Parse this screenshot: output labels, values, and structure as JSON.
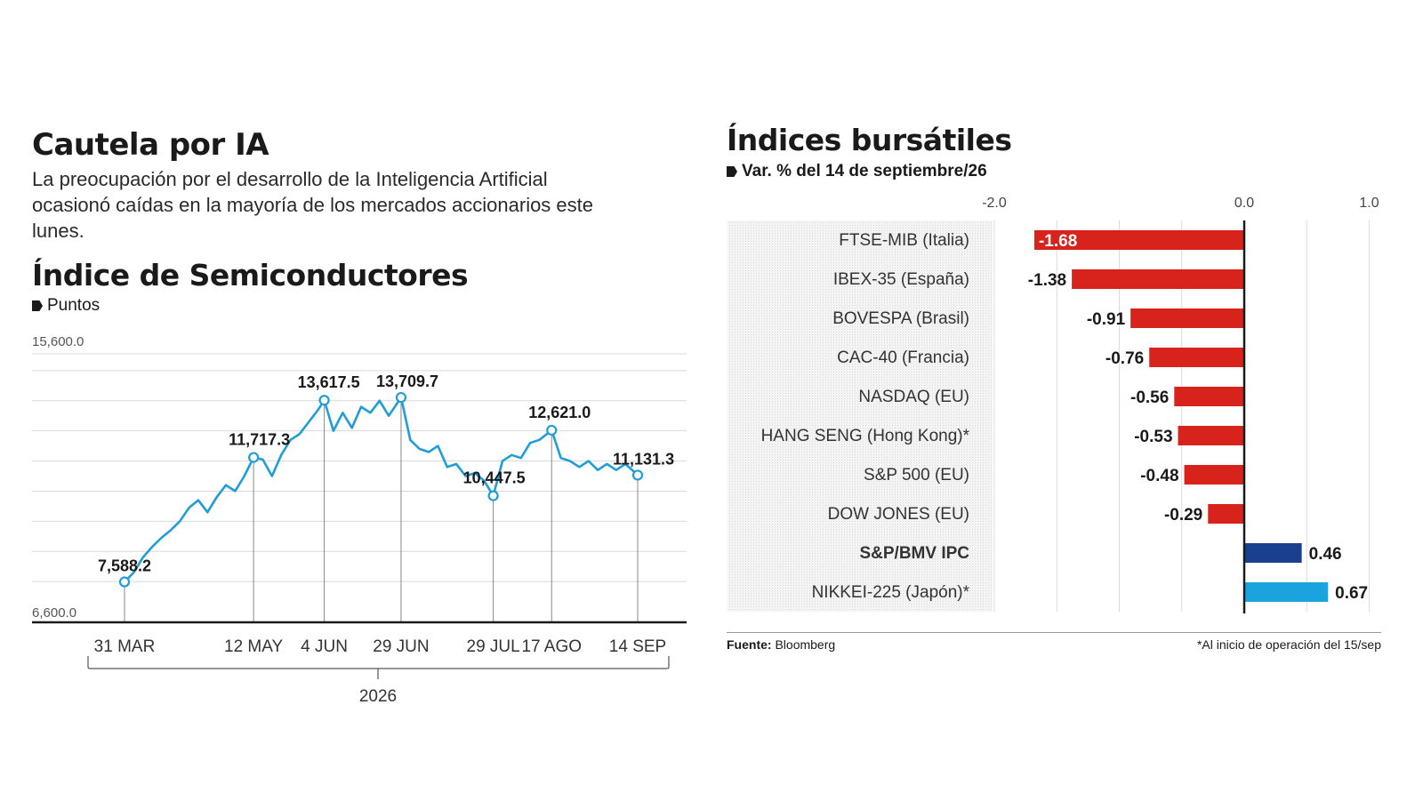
{
  "left": {
    "title": "Cautela por IA",
    "lead": "La preocupación por el desarrollo de la Inteligencia Artificial ocasionó caídas en la mayoría de los mercados accionarios este lunes.",
    "chart_title": "Índice de Semiconductores",
    "chart_subtitle": "Puntos",
    "year_label": "2026"
  },
  "right": {
    "title": "Índices bursátiles",
    "subtitle": "Var. % del 14 de septiembre/26",
    "source_label": "Fuente:",
    "source_value": "Bloomberg",
    "note": "*Al inicio de operación del 15/sep"
  },
  "colors": {
    "line": "#1f9ed6",
    "negative": "#d8231c",
    "mexico": "#1b3f8f",
    "nikkei": "#1aa3df"
  },
  "chart_data": [
    {
      "type": "line",
      "title": "Índice de Semiconductores",
      "ylabel": "Puntos",
      "ylim": [
        6600.0,
        15600.0
      ],
      "y_tick_labels": [
        "6,600.0",
        "15,600.0"
      ],
      "x_tick_labels": [
        "31 MAR",
        "12 MAY",
        "4 JUN",
        "29 JUN",
        "29 JUL",
        "17 AGO",
        "14 SEP"
      ],
      "x_range": [
        "2026-03-31",
        "2026-09-14"
      ],
      "annotations": [
        {
          "date": "2026-03-31",
          "value": 7588.2,
          "label": "7,588.2"
        },
        {
          "date": "2026-05-12",
          "value": 11717.3,
          "label": "11,717.3"
        },
        {
          "date": "2026-06-04",
          "value": 13617.5,
          "label": "13,617.5"
        },
        {
          "date": "2026-06-29",
          "value": 13709.7,
          "label": "13,709.7"
        },
        {
          "date": "2026-07-29",
          "value": 10447.5,
          "label": "10,447.5"
        },
        {
          "date": "2026-08-17",
          "value": 12621.0,
          "label": "12,621.0"
        },
        {
          "date": "2026-09-14",
          "value": 11131.3,
          "label": "11,131.3"
        }
      ],
      "series": [
        {
          "x": [
            "2026-03-31",
            "2026-04-03",
            "2026-04-06",
            "2026-04-09",
            "2026-04-12",
            "2026-04-15",
            "2026-04-18",
            "2026-04-21",
            "2026-04-24",
            "2026-04-27",
            "2026-04-30",
            "2026-05-03",
            "2026-05-06",
            "2026-05-09",
            "2026-05-12",
            "2026-05-15",
            "2026-05-18",
            "2026-05-21",
            "2026-05-24",
            "2026-05-27",
            "2026-05-30",
            "2026-06-02",
            "2026-06-04",
            "2026-06-07",
            "2026-06-10",
            "2026-06-13",
            "2026-06-16",
            "2026-06-19",
            "2026-06-22",
            "2026-06-25",
            "2026-06-29",
            "2026-07-02",
            "2026-07-05",
            "2026-07-08",
            "2026-07-11",
            "2026-07-14",
            "2026-07-17",
            "2026-07-20",
            "2026-07-23",
            "2026-07-26",
            "2026-07-29",
            "2026-08-01",
            "2026-08-04",
            "2026-08-07",
            "2026-08-10",
            "2026-08-13",
            "2026-08-17",
            "2026-08-20",
            "2026-08-23",
            "2026-08-26",
            "2026-08-29",
            "2026-09-01",
            "2026-09-04",
            "2026-09-07",
            "2026-09-10",
            "2026-09-14"
          ],
          "y": [
            7588.2,
            7900,
            8400,
            8750,
            9050,
            9300,
            9600,
            10050,
            10300,
            9900,
            10400,
            10800,
            10600,
            11100,
            11717.3,
            11650,
            11100,
            11800,
            12300,
            12500,
            12900,
            13300,
            13617.5,
            12600,
            13200,
            12700,
            13400,
            13200,
            13600,
            13100,
            13709.7,
            12300,
            12000,
            11900,
            12100,
            11400,
            11500,
            11100,
            11200,
            10950,
            10447.5,
            11600,
            11800,
            11700,
            12200,
            12300,
            12621.0,
            11700,
            11600,
            11400,
            11600,
            11300,
            11500,
            11300,
            11500,
            11131.3
          ]
        }
      ]
    },
    {
      "type": "bar",
      "title": "Índices bursátiles",
      "subtitle": "Var. % del 14 de septiembre/26",
      "xlim": [
        -2.0,
        1.0
      ],
      "x_tick_labels": [
        "-2.0",
        "0.0",
        "1.0"
      ],
      "categories": [
        "FTSE-MIB (Italia)",
        "IBEX-35 (España)",
        "BOVESPA (Brasil)",
        "CAC-40 (Francia)",
        "NASDAQ (EU)",
        "HANG SENG (Hong Kong)*",
        "S&P 500 (EU)",
        "DOW JONES (EU)",
        "S&P/BMV IPC",
        "NIKKEI-225 (Japón)*"
      ],
      "values": [
        -1.68,
        -1.38,
        -0.91,
        -0.76,
        -0.56,
        -0.53,
        -0.48,
        -0.29,
        0.46,
        0.67
      ],
      "value_labels": [
        "-1.68",
        "-1.38",
        "-0.91",
        "-0.76",
        "-0.56",
        "-0.53",
        "-0.48",
        "-0.29",
        "0.46",
        "0.67"
      ]
    }
  ]
}
